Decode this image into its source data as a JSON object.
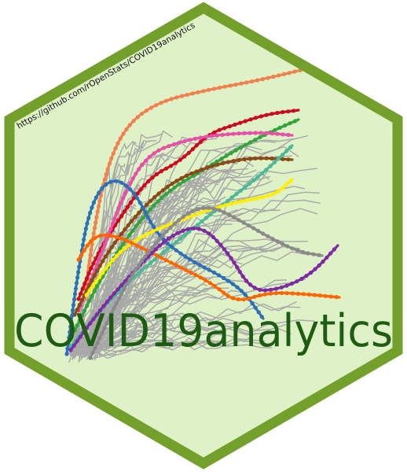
{
  "sticker": {
    "title": "COVID19analytics",
    "url": "https://github.com/rOpenStats/COVID19analytics"
  },
  "colors": {
    "hex_fill": "#dff2c7",
    "hex_border": "#73a02b",
    "title": "#1f5c13",
    "url": "#111111",
    "background_lines": "#a8a8a8",
    "series": [
      "#f2804d",
      "#cc0a1f",
      "#33a33d",
      "#e84fa8",
      "#8a4a14",
      "#4bb89a",
      "#2f6fb5",
      "#ffee00",
      "#ff6600",
      "#7e2aa3",
      "#8a8a8a"
    ]
  }
}
